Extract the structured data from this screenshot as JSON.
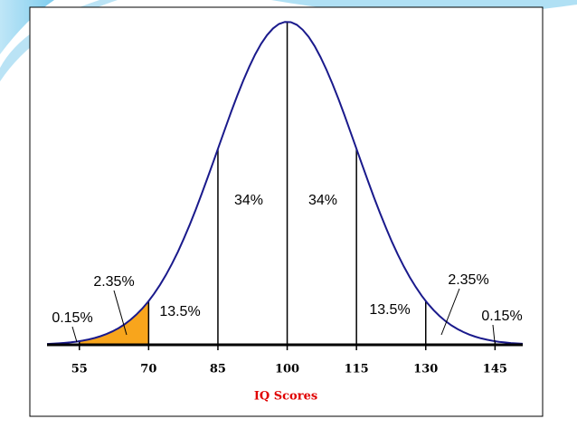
{
  "chart_data": {
    "type": "normal",
    "x_label": "IQ Scores",
    "xlim": [
      48,
      151
    ],
    "xticks": [
      55,
      70,
      85,
      100,
      115,
      130,
      145
    ],
    "values": [
      0.15,
      2.35,
      13.5,
      34,
      34,
      13.5,
      2.35,
      0.15
    ],
    "value_labels": [
      "0.15%",
      "2.35%",
      "13.5%",
      "34%",
      "34%",
      "13.5%",
      "2.35%",
      "0.15%"
    ],
    "color": "#1a1a8c",
    "fill_colors": [
      null,
      "#f8a51c",
      null,
      null,
      null,
      null,
      null,
      null
    ]
  }
}
